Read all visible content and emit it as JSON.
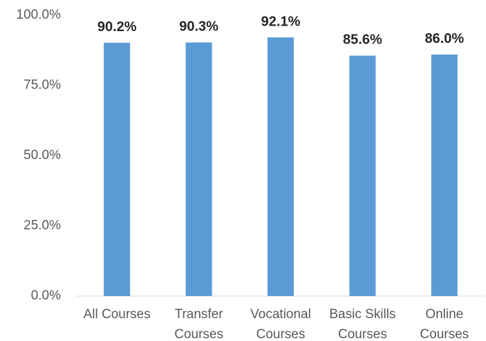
{
  "chart_data": {
    "type": "bar",
    "categories": [
      "All Courses",
      "Transfer Courses",
      "Vocational Courses",
      "Basic Skills Courses",
      "Online Courses"
    ],
    "values": [
      90.2,
      90.3,
      92.1,
      85.6,
      86.0
    ],
    "value_labels": [
      "90.2%",
      "90.3%",
      "92.1%",
      "85.6%",
      "86.0%"
    ],
    "color": "#5b9bd5",
    "ylim": [
      0,
      100
    ],
    "yticks": [
      {
        "value": 0,
        "label": "0.0%"
      },
      {
        "value": 25,
        "label": "25.0%"
      },
      {
        "value": 50,
        "label": "50.0%"
      },
      {
        "value": 75,
        "label": "75.0%"
      },
      {
        "value": 100,
        "label": "100.0%"
      }
    ],
    "grid": false
  }
}
